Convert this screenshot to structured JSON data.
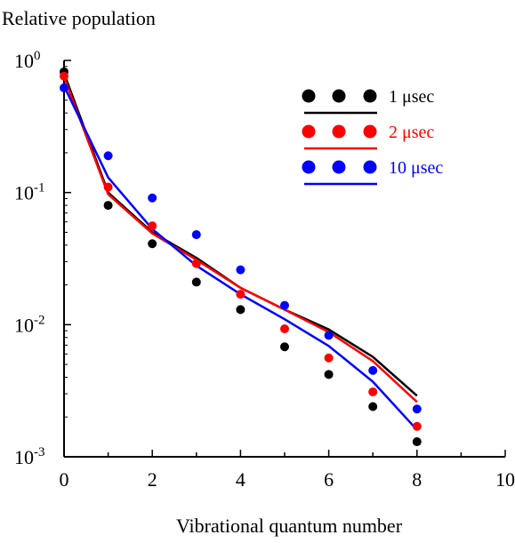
{
  "chart_data": {
    "type": "scatter",
    "title": "",
    "ylabel": "Relative population",
    "xlabel": "Vibrational quantum number",
    "xlim": [
      0,
      10
    ],
    "ylim": [
      0.001,
      1
    ],
    "yscale": "log",
    "x_ticks": [
      "0",
      "2",
      "4",
      "6",
      "8",
      "10"
    ],
    "y_ticks": [
      {
        "base": "10",
        "exp": "0",
        "value": 1
      },
      {
        "base": "10",
        "exp": "-1",
        "value": 0.1
      },
      {
        "base": "10",
        "exp": "-2",
        "value": 0.01
      },
      {
        "base": "10",
        "exp": "-3",
        "value": 0.001
      }
    ],
    "legend_position": "top-right",
    "series": [
      {
        "name": "1 μsec",
        "color": "#000000",
        "points": {
          "x": [
            0,
            1,
            2,
            3,
            4,
            5,
            6,
            7,
            8
          ],
          "y": [
            0.82,
            0.08,
            0.041,
            0.021,
            0.013,
            0.0068,
            0.0042,
            0.0024,
            0.0013
          ]
        },
        "line": {
          "x": [
            0,
            1,
            2,
            3,
            4,
            5,
            6,
            7,
            8
          ],
          "y": [
            0.8,
            0.1,
            0.05,
            0.032,
            0.019,
            0.013,
            0.0092,
            0.0057,
            0.0029
          ]
        }
      },
      {
        "name": "2 μsec",
        "color": "#ff0000",
        "points": {
          "x": [
            0,
            1,
            2,
            3,
            4,
            5,
            6,
            7,
            8
          ],
          "y": [
            0.76,
            0.11,
            0.056,
            0.029,
            0.017,
            0.0093,
            0.0056,
            0.0031,
            0.0017
          ]
        },
        "line": {
          "x": [
            0,
            1,
            2,
            3,
            4,
            5,
            6,
            7,
            8
          ],
          "y": [
            0.75,
            0.097,
            0.049,
            0.031,
            0.019,
            0.013,
            0.0088,
            0.0053,
            0.0026
          ]
        }
      },
      {
        "name": "10 μsec",
        "color": "#0000ff",
        "points": {
          "x": [
            0,
            1,
            2,
            3,
            4,
            5,
            6,
            7,
            8
          ],
          "y": [
            0.62,
            0.19,
            0.091,
            0.048,
            0.026,
            0.014,
            0.0083,
            0.0045,
            0.0023
          ]
        },
        "line": {
          "x": [
            0,
            1,
            2,
            3,
            4,
            5,
            6,
            7,
            8
          ],
          "y": [
            0.64,
            0.13,
            0.053,
            0.028,
            0.017,
            0.011,
            0.0069,
            0.0037,
            0.0016
          ]
        }
      }
    ]
  }
}
